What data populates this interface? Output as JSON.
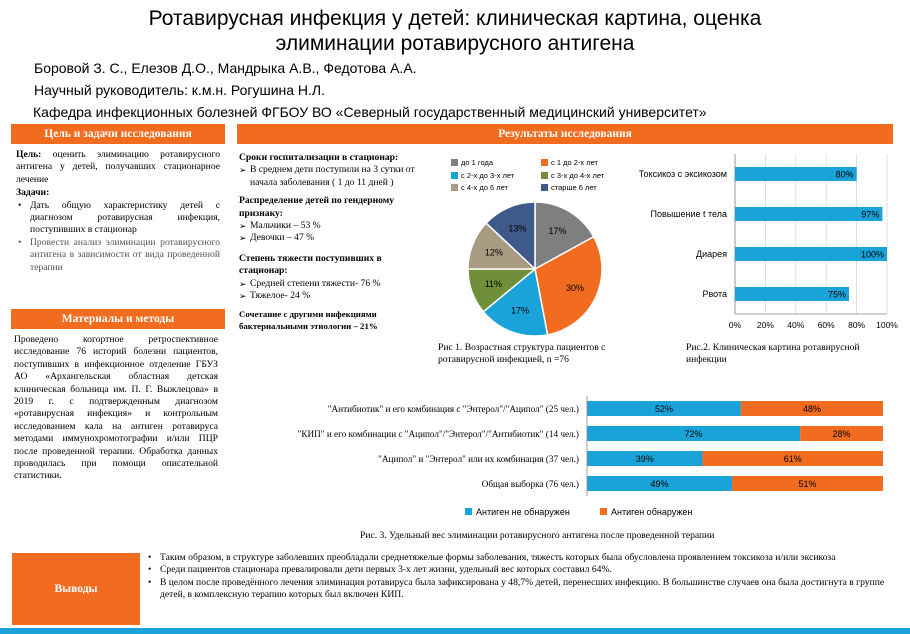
{
  "header": {
    "title_line1": "Ротавирусная инфекция у детей: клиническая картина, оценка",
    "title_line2": "элиминации  ротавирусного антигена",
    "authors": "Боровой З. С., Елезов Д.О., Мандрыка А.В., Федотова А.А.",
    "supervisor": "Научный руководитель: к.м.н. Рогушина Н.Л.",
    "department": "Кафедра инфекционных болезней ФГБОУ ВО «Северный государственный медицинский университет»"
  },
  "goals": {
    "header": "Цель и задачи исследования",
    "aim_label": "Цель:",
    "aim_text": " оценить элиминацию ротавирусного антигена у детей, получавших стационарное лечение",
    "tasks_label": "Задачи:",
    "tasks": [
      "Дать общую характеристику детей с диагнозом ротавирусная инфекция, поступивших в стационар",
      "Провести анализ элиминации ротавирусного антигена в зависимости от вида проведенной терапии"
    ]
  },
  "methods": {
    "header": "Материалы и методы",
    "text": "Проведено когортное ретроспективное исследование 76 историй болезни пациентов, поступивших в инфекционное отделение ГБУЗ АО «Архангельская областная детская клиническая больница им. П. Г. Выжлецова» в 2019 г. с подтвержденным диагнозом «ротавирусная инфекция» и контрольным исследованием кала на антиген ротавируса методами иммунохромотографии и/или ПЦР после проведенной терапии. Обработка данных проводилась при помощи описательной статистики."
  },
  "results": {
    "header": "Результаты исследования",
    "hosp_title": "Сроки госпитализации в стационар:",
    "hosp_item": "В среднем дети поступили на 3 сутки от начала заболевания ( 1 до 11 дней )",
    "gender_title": "Распределение детей по гендерному признаку:",
    "gender_items": [
      "Мальчики – 53 %",
      "Девочки – 47 %"
    ],
    "severity_title": "Степень тяжести поступивших в стационар:",
    "severity_items": [
      "Средней степени тяжести- 76 %",
      "Тяжелое- 24 %"
    ],
    "coinf_text": "Сочетание  с  другими инфекциями бактериальными   этиологии – 21%",
    "fig1_caption": "Рис 1. Возрастная структура пациентов с ротавирусной инфекцией, n =76",
    "fig2_caption": "Рис.2. Клиническая картина ротавирусной инфекции",
    "fig3_caption": "Рис. 3. Удельный вес элиминации ротавирусного антигена после проведенной терапии"
  },
  "conclusions": {
    "header": "Выводы",
    "items": [
      "Таким образом, в структуре заболевших преобладали среднетяжелые формы заболевания, тяжесть которых была обусловлена проявлением токсикоза и/или эксикоза",
      "Среди пациентов стационара  превалировали дети первых 3-х лет жизни, удельный вес которых составил 64%.",
      "В целом  после проведённого лечения  элиминация ротавируса  была зафиксирована  у 48,7% детей, перенесших  инфекцию. В большинстве случаев она была достигнута в группе детей, в комплексную терапию которых был включен КИП."
    ]
  },
  "colors": {
    "orange": "#f26c20",
    "blue": "#1aa3d9",
    "pie_gray": "#7f7f7f",
    "pie_green": "#6f8f3a",
    "pie_tan": "#a89b82",
    "pie_navy": "#3d5a8a"
  },
  "chart_data": [
    {
      "type": "pie",
      "labels": [
        "до 1 года",
        "с 1 до 2-х лет",
        "с 2-х до 3-х лет",
        "с 3-х до 4-х лет",
        "с 4-х до 6 лет",
        "старше 6 лет"
      ],
      "values": [
        17,
        30,
        17,
        11,
        12,
        13
      ],
      "value_labels": [
        "17%",
        "30%",
        "17%",
        "11%",
        "12%",
        "13%"
      ],
      "legend": "top"
    },
    {
      "type": "bar",
      "orientation": "horizontal",
      "categories": [
        "Токсикоз с эксикозом",
        "Повышение t тела",
        "Диарея",
        "Рвота"
      ],
      "values": [
        80,
        97,
        100,
        75
      ],
      "value_labels": [
        "80%",
        "97%",
        "100%",
        "75%"
      ],
      "xticks": [
        "0%",
        "20%",
        "40%",
        "60%",
        "80%",
        "100%"
      ],
      "xlim": [
        0,
        100
      ],
      "grid": true
    },
    {
      "type": "bar",
      "orientation": "horizontal",
      "stacked": true,
      "categories": [
        "\"Антибиотик\" и его комбинация с \"Энтерол\"/\"Аципол\" (25 чел.)",
        "\"КИП\" и его комбинации с \"Аципол\"/\"Энтерол\"/\"Антибиотик\" (14 чел.)",
        "\"Аципол\" и \"Энтерол\" или их комбинация (37 чел.)",
        "Общая выборка (76 чел.)"
      ],
      "series": [
        {
          "name": "Антиген не обнаружен",
          "values": [
            52,
            72,
            39,
            49
          ],
          "value_labels": [
            "52%",
            "72%",
            "39%",
            "49%"
          ]
        },
        {
          "name": "Антиген обнаружен",
          "values": [
            48,
            28,
            61,
            51
          ],
          "value_labels": [
            "48%",
            "28%",
            "61%",
            "51%"
          ]
        }
      ],
      "legend": "bottom"
    }
  ]
}
